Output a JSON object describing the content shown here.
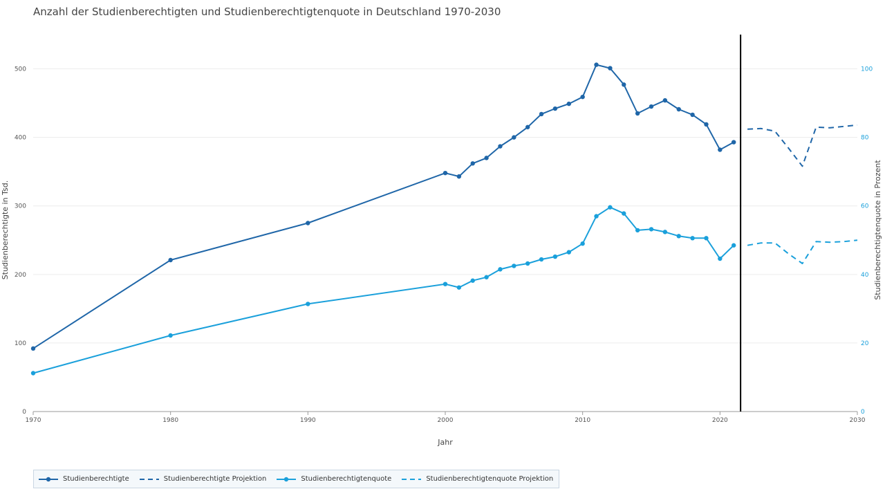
{
  "chart_data": {
    "type": "line",
    "title": "Anzahl der Studienberechtigten und Studienberechtigtenquote in Deutschland 1970-2030",
    "xlabel": "Jahr",
    "ylabel_left": "Studienberechtigte in Tsd.",
    "ylabel_right": "Studienberechtigtenquote in Prozent",
    "xlim": [
      1970,
      2030
    ],
    "ylim_left": [
      0,
      550
    ],
    "ylim_right": [
      0,
      110
    ],
    "x_ticks": [
      "1970",
      "1980",
      "1990",
      "2000",
      "2010",
      "2020",
      "2030"
    ],
    "y_ticks_left": [
      "0",
      "100",
      "200",
      "300",
      "400",
      "500"
    ],
    "y_ticks_right": [
      "0",
      "20",
      "40",
      "60",
      "80",
      "100"
    ],
    "projection_start": 2021.5,
    "grid": true,
    "legend_position": "bottom-left",
    "series": [
      {
        "name": "Studienberechtigte",
        "axis": "left",
        "style": "solid",
        "markers": true,
        "color": "#1f66a8",
        "x": [
          1970,
          1980,
          1990,
          2000,
          2001,
          2002,
          2003,
          2004,
          2005,
          2006,
          2007,
          2008,
          2009,
          2010,
          2011,
          2012,
          2013,
          2014,
          2015,
          2016,
          2017,
          2018,
          2019,
          2020,
          2021
        ],
        "values": [
          92,
          221,
          275,
          348,
          343,
          362,
          370,
          387,
          400,
          415,
          434,
          442,
          449,
          459,
          506,
          501,
          477,
          435,
          445,
          454,
          441,
          433,
          419,
          382,
          393
        ]
      },
      {
        "name": "Studienberechtigte Projektion",
        "axis": "left",
        "style": "dashed",
        "markers": false,
        "color": "#1f66a8",
        "x": [
          2022,
          2023,
          2024,
          2025,
          2026,
          2027,
          2028,
          2029,
          2030
        ],
        "values": [
          412,
          413,
          409,
          384,
          358,
          415,
          414,
          416,
          418
        ]
      },
      {
        "name": "Studienberechtigtenquote",
        "axis": "right",
        "style": "solid",
        "markers": true,
        "color": "#1aa0db",
        "x": [
          1970,
          1980,
          1990,
          2000,
          2001,
          2002,
          2003,
          2004,
          2005,
          2006,
          2007,
          2008,
          2009,
          2010,
          2011,
          2012,
          2013,
          2014,
          2015,
          2016,
          2017,
          2018,
          2019,
          2020,
          2021
        ],
        "values": [
          11.2,
          22.2,
          31.4,
          37.2,
          36.2,
          38.2,
          39.2,
          41.5,
          42.5,
          43.2,
          44.4,
          45.2,
          46.5,
          49,
          57,
          59.6,
          57.8,
          52.9,
          53.2,
          52.4,
          51.2,
          50.6,
          50.6,
          44.6,
          48.5
        ]
      },
      {
        "name": "Studienberechtigtenquote Projektion",
        "axis": "right",
        "style": "dashed",
        "markers": false,
        "color": "#1aa0db",
        "x": [
          2022,
          2023,
          2024,
          2025,
          2026,
          2027,
          2028,
          2029,
          2030
        ],
        "values": [
          48.5,
          49.2,
          49.2,
          46,
          43.2,
          49.6,
          49.4,
          49.6,
          50
        ]
      }
    ]
  }
}
